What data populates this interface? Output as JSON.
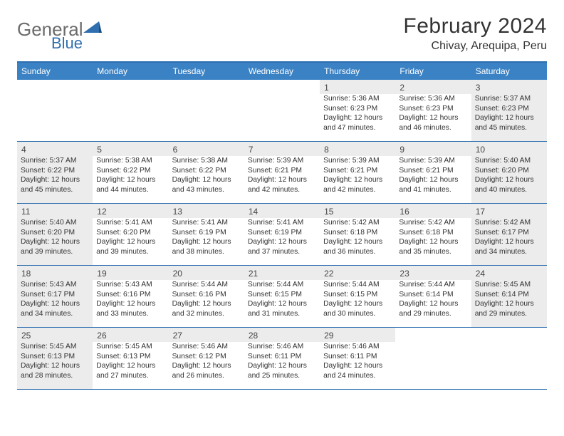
{
  "logo": {
    "part1": "General",
    "part2": "Blue"
  },
  "title": "February 2024",
  "location": "Chivay, Arequipa, Peru",
  "weekdays": [
    "Sunday",
    "Monday",
    "Tuesday",
    "Wednesday",
    "Thursday",
    "Friday",
    "Saturday"
  ],
  "colors": {
    "header_bar": "#3b82c4",
    "border": "#2f6fb0",
    "shaded": "#ececec",
    "logo_gray": "#6b6b6b",
    "logo_blue": "#2f6fb0",
    "text": "#333333"
  },
  "weeks": [
    [
      {
        "n": "",
        "shaded": false,
        "sunrise": "",
        "sunset": "",
        "daylight": ""
      },
      {
        "n": "",
        "shaded": false,
        "sunrise": "",
        "sunset": "",
        "daylight": ""
      },
      {
        "n": "",
        "shaded": false,
        "sunrise": "",
        "sunset": "",
        "daylight": ""
      },
      {
        "n": "",
        "shaded": false,
        "sunrise": "",
        "sunset": "",
        "daylight": ""
      },
      {
        "n": "1",
        "shaded": false,
        "sunrise": "Sunrise: 5:36 AM",
        "sunset": "Sunset: 6:23 PM",
        "daylight": "Daylight: 12 hours and 47 minutes."
      },
      {
        "n": "2",
        "shaded": false,
        "sunrise": "Sunrise: 5:36 AM",
        "sunset": "Sunset: 6:23 PM",
        "daylight": "Daylight: 12 hours and 46 minutes."
      },
      {
        "n": "3",
        "shaded": true,
        "sunrise": "Sunrise: 5:37 AM",
        "sunset": "Sunset: 6:23 PM",
        "daylight": "Daylight: 12 hours and 45 minutes."
      }
    ],
    [
      {
        "n": "4",
        "shaded": true,
        "sunrise": "Sunrise: 5:37 AM",
        "sunset": "Sunset: 6:22 PM",
        "daylight": "Daylight: 12 hours and 45 minutes."
      },
      {
        "n": "5",
        "shaded": false,
        "sunrise": "Sunrise: 5:38 AM",
        "sunset": "Sunset: 6:22 PM",
        "daylight": "Daylight: 12 hours and 44 minutes."
      },
      {
        "n": "6",
        "shaded": false,
        "sunrise": "Sunrise: 5:38 AM",
        "sunset": "Sunset: 6:22 PM",
        "daylight": "Daylight: 12 hours and 43 minutes."
      },
      {
        "n": "7",
        "shaded": false,
        "sunrise": "Sunrise: 5:39 AM",
        "sunset": "Sunset: 6:21 PM",
        "daylight": "Daylight: 12 hours and 42 minutes."
      },
      {
        "n": "8",
        "shaded": false,
        "sunrise": "Sunrise: 5:39 AM",
        "sunset": "Sunset: 6:21 PM",
        "daylight": "Daylight: 12 hours and 42 minutes."
      },
      {
        "n": "9",
        "shaded": false,
        "sunrise": "Sunrise: 5:39 AM",
        "sunset": "Sunset: 6:21 PM",
        "daylight": "Daylight: 12 hours and 41 minutes."
      },
      {
        "n": "10",
        "shaded": true,
        "sunrise": "Sunrise: 5:40 AM",
        "sunset": "Sunset: 6:20 PM",
        "daylight": "Daylight: 12 hours and 40 minutes."
      }
    ],
    [
      {
        "n": "11",
        "shaded": true,
        "sunrise": "Sunrise: 5:40 AM",
        "sunset": "Sunset: 6:20 PM",
        "daylight": "Daylight: 12 hours and 39 minutes."
      },
      {
        "n": "12",
        "shaded": false,
        "sunrise": "Sunrise: 5:41 AM",
        "sunset": "Sunset: 6:20 PM",
        "daylight": "Daylight: 12 hours and 39 minutes."
      },
      {
        "n": "13",
        "shaded": false,
        "sunrise": "Sunrise: 5:41 AM",
        "sunset": "Sunset: 6:19 PM",
        "daylight": "Daylight: 12 hours and 38 minutes."
      },
      {
        "n": "14",
        "shaded": false,
        "sunrise": "Sunrise: 5:41 AM",
        "sunset": "Sunset: 6:19 PM",
        "daylight": "Daylight: 12 hours and 37 minutes."
      },
      {
        "n": "15",
        "shaded": false,
        "sunrise": "Sunrise: 5:42 AM",
        "sunset": "Sunset: 6:18 PM",
        "daylight": "Daylight: 12 hours and 36 minutes."
      },
      {
        "n": "16",
        "shaded": false,
        "sunrise": "Sunrise: 5:42 AM",
        "sunset": "Sunset: 6:18 PM",
        "daylight": "Daylight: 12 hours and 35 minutes."
      },
      {
        "n": "17",
        "shaded": true,
        "sunrise": "Sunrise: 5:42 AM",
        "sunset": "Sunset: 6:17 PM",
        "daylight": "Daylight: 12 hours and 34 minutes."
      }
    ],
    [
      {
        "n": "18",
        "shaded": true,
        "sunrise": "Sunrise: 5:43 AM",
        "sunset": "Sunset: 6:17 PM",
        "daylight": "Daylight: 12 hours and 34 minutes."
      },
      {
        "n": "19",
        "shaded": false,
        "sunrise": "Sunrise: 5:43 AM",
        "sunset": "Sunset: 6:16 PM",
        "daylight": "Daylight: 12 hours and 33 minutes."
      },
      {
        "n": "20",
        "shaded": false,
        "sunrise": "Sunrise: 5:44 AM",
        "sunset": "Sunset: 6:16 PM",
        "daylight": "Daylight: 12 hours and 32 minutes."
      },
      {
        "n": "21",
        "shaded": false,
        "sunrise": "Sunrise: 5:44 AM",
        "sunset": "Sunset: 6:15 PM",
        "daylight": "Daylight: 12 hours and 31 minutes."
      },
      {
        "n": "22",
        "shaded": false,
        "sunrise": "Sunrise: 5:44 AM",
        "sunset": "Sunset: 6:15 PM",
        "daylight": "Daylight: 12 hours and 30 minutes."
      },
      {
        "n": "23",
        "shaded": false,
        "sunrise": "Sunrise: 5:44 AM",
        "sunset": "Sunset: 6:14 PM",
        "daylight": "Daylight: 12 hours and 29 minutes."
      },
      {
        "n": "24",
        "shaded": true,
        "sunrise": "Sunrise: 5:45 AM",
        "sunset": "Sunset: 6:14 PM",
        "daylight": "Daylight: 12 hours and 29 minutes."
      }
    ],
    [
      {
        "n": "25",
        "shaded": true,
        "sunrise": "Sunrise: 5:45 AM",
        "sunset": "Sunset: 6:13 PM",
        "daylight": "Daylight: 12 hours and 28 minutes."
      },
      {
        "n": "26",
        "shaded": false,
        "sunrise": "Sunrise: 5:45 AM",
        "sunset": "Sunset: 6:13 PM",
        "daylight": "Daylight: 12 hours and 27 minutes."
      },
      {
        "n": "27",
        "shaded": false,
        "sunrise": "Sunrise: 5:46 AM",
        "sunset": "Sunset: 6:12 PM",
        "daylight": "Daylight: 12 hours and 26 minutes."
      },
      {
        "n": "28",
        "shaded": false,
        "sunrise": "Sunrise: 5:46 AM",
        "sunset": "Sunset: 6:11 PM",
        "daylight": "Daylight: 12 hours and 25 minutes."
      },
      {
        "n": "29",
        "shaded": false,
        "sunrise": "Sunrise: 5:46 AM",
        "sunset": "Sunset: 6:11 PM",
        "daylight": "Daylight: 12 hours and 24 minutes."
      },
      {
        "n": "",
        "shaded": false,
        "sunrise": "",
        "sunset": "",
        "daylight": ""
      },
      {
        "n": "",
        "shaded": false,
        "sunrise": "",
        "sunset": "",
        "daylight": ""
      }
    ]
  ]
}
